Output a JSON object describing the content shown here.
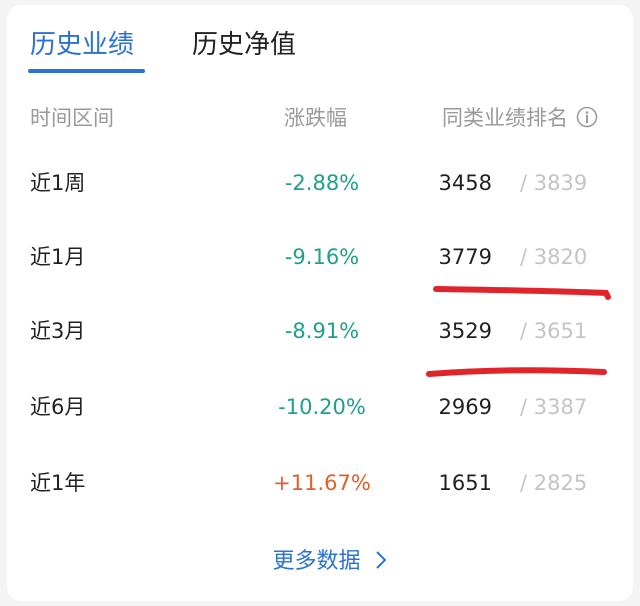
{
  "tabs": [
    {
      "label": "历史业绩",
      "active": true
    },
    {
      "label": "历史净值",
      "active": false
    }
  ],
  "table": {
    "headers": [
      "时间区间",
      "涨跌幅",
      "同类业绩排名"
    ],
    "info_icon": "info-circle-icon",
    "rows": [
      {
        "period": "近1周",
        "change": "-2.88%",
        "rank": "3458",
        "total": "/ 3839",
        "trend": "down"
      },
      {
        "period": "近1月",
        "change": "-9.16%",
        "rank": "3779",
        "total": "/ 3820",
        "trend": "down"
      },
      {
        "period": "近3月",
        "change": "-8.91%",
        "rank": "3529",
        "total": "/ 3651",
        "trend": "down"
      },
      {
        "period": "近6月",
        "change": "-10.20%",
        "rank": "2969",
        "total": "/ 3387",
        "trend": "down"
      },
      {
        "period": "近1年",
        "change": "+11.67%",
        "rank": "1651",
        "total": "/ 2825",
        "trend": "up"
      }
    ]
  },
  "more_link": {
    "label": "更多数据",
    "icon": "chevron-right-icon"
  },
  "colors": {
    "accent": "#2a72d4",
    "down": "#1fa08a",
    "up": "#e0602a",
    "annotation": "#e0242b"
  }
}
